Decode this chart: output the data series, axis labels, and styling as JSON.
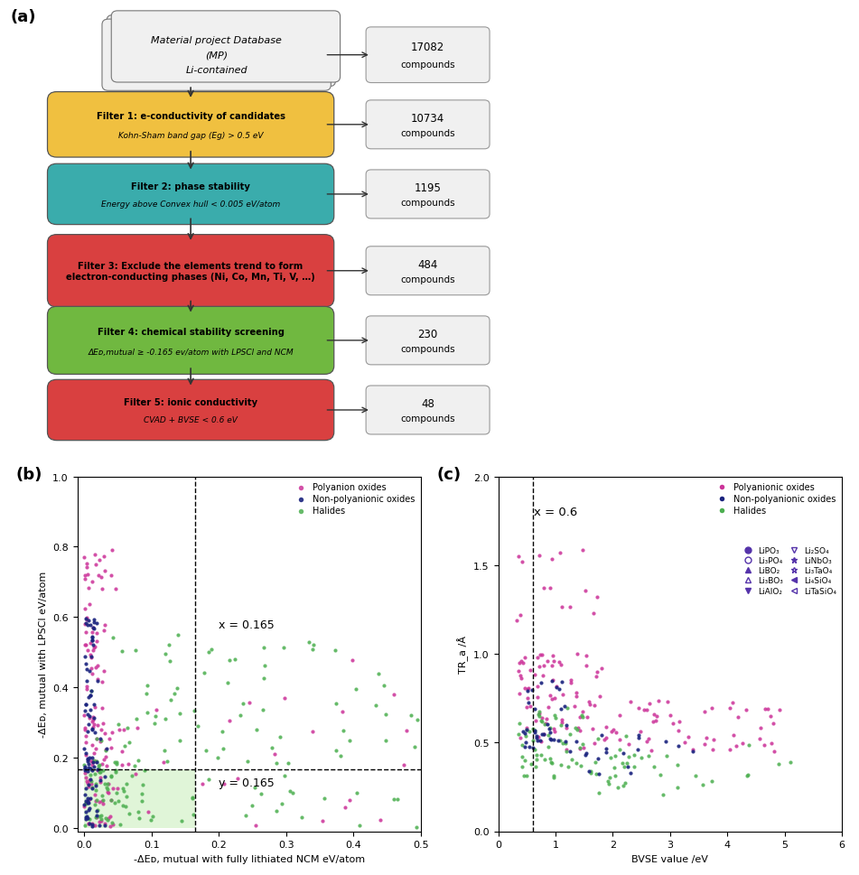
{
  "panel_a": {
    "title": "(a)",
    "filters": [
      {
        "title": "Filter 1: e-conductivity of candidates",
        "desc": "Kohn-Sham band gap (Eg) > 0.5 eV",
        "color": "#F0C040",
        "count": "10734\ncompounds"
      },
      {
        "title": "Filter 2: phase stability",
        "desc": "Energy above Convex hull < 0.005 eV/atom",
        "color": "#3AACAC",
        "count": "1195\ncompounds"
      },
      {
        "title": "Filter 3: Exclude the elements trend to form\nelectron-conducting phases (Ni, Co, Mn, Ti, V, …)",
        "desc": "",
        "color": "#D94040",
        "count": "484\ncompounds"
      },
      {
        "title": "Filter 4: chemical stability screening",
        "desc": "ΔEᴅ,mutual ≥ -0.165 ev/atom with LPSCl and NCM",
        "color": "#70B840",
        "count": "230\ncompounds"
      },
      {
        "title": "Filter 5: ionic conductivity",
        "desc": "CVAD + BVSE < 0.6 eV",
        "color": "#D94040",
        "count": "48\ncompounds"
      }
    ]
  },
  "panel_b": {
    "title": "(b)",
    "xlabel": "-ΔEᴅ, mutual with fully lithiated NCM eV/atom",
    "ylabel": "-ΔEᴅ, mutual with LPSCl eV/atom",
    "xlim": [
      -0.01,
      0.5
    ],
    "ylim": [
      -0.01,
      1.0
    ],
    "xticks": [
      0.0,
      0.1,
      0.2,
      0.3,
      0.4,
      0.5
    ],
    "yticks": [
      0.0,
      0.2,
      0.4,
      0.6,
      0.8,
      1.0
    ],
    "dashed_x": 0.165,
    "dashed_y": 0.165,
    "label_x": "x = 0.165",
    "label_y": "y = 0.165",
    "shade_color": "#E0F5D8",
    "categories": [
      "Polyanion oxides",
      "Non-polyanionic oxides",
      "Halides"
    ],
    "colors": [
      "#CC3399",
      "#1A237E",
      "#4CAF50"
    ]
  },
  "panel_c": {
    "title": "(c)",
    "xlabel": "BVSE value /eV",
    "ylabel": "TR_a /Å",
    "xlim": [
      0,
      6
    ],
    "ylim": [
      0.0,
      2.0
    ],
    "xticks": [
      0,
      1,
      2,
      3,
      4,
      5,
      6
    ],
    "yticks": [
      0.0,
      0.5,
      1.0,
      1.5,
      2.0
    ],
    "dashed_x": 0.6,
    "label_x": "x = 0.6",
    "categories": [
      "Polyanionic oxides",
      "Non-polyanionic oxides",
      "Halides"
    ],
    "colors": [
      "#CC3399",
      "#1A237E",
      "#4CAF50"
    ],
    "legend2_col1": [
      "LiPO₃",
      "LiBO₂",
      "LiAlO₂",
      "LiNbO₃",
      "Li₄SiO₄"
    ],
    "legend2_col2": [
      "Li₃PO₄",
      "Li₃BO₃",
      "Li₂SO₄",
      "Li₃TaO₄",
      "LiTaSiO₄"
    ],
    "markers_col1": [
      "o",
      "^",
      "v",
      "*",
      "<"
    ],
    "markers_col2": [
      "o",
      "^",
      "v",
      "*",
      "<"
    ]
  }
}
